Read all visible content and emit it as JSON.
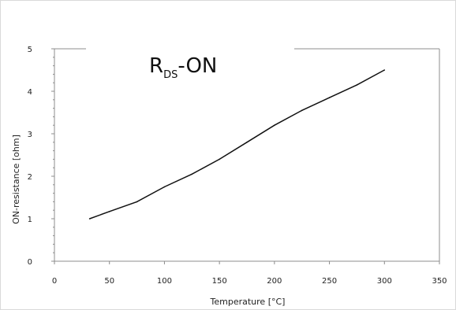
{
  "chart_data": {
    "type": "line",
    "title_main": "R",
    "title_sub": "DS",
    "title_suffix": "-ON",
    "xlabel": "Temperature [°C]",
    "ylabel": "ON-resistance [ohm]",
    "xlim": [
      0,
      350
    ],
    "ylim": [
      0,
      5
    ],
    "xticks": [
      0,
      50,
      100,
      150,
      200,
      250,
      300,
      350
    ],
    "yticks": [
      0,
      1,
      2,
      3,
      4,
      5
    ],
    "grid": false,
    "series": [
      {
        "color": "#111111",
        "points": [
          {
            "x": 32,
            "y": 1.0
          },
          {
            "x": 50,
            "y": 1.17
          },
          {
            "x": 75,
            "y": 1.4
          },
          {
            "x": 100,
            "y": 1.75
          },
          {
            "x": 125,
            "y": 2.05
          },
          {
            "x": 150,
            "y": 2.4
          },
          {
            "x": 175,
            "y": 2.8
          },
          {
            "x": 200,
            "y": 3.2
          },
          {
            "x": 225,
            "y": 3.55
          },
          {
            "x": 250,
            "y": 3.85
          },
          {
            "x": 275,
            "y": 4.15
          },
          {
            "x": 300,
            "y": 4.5
          }
        ]
      }
    ]
  }
}
